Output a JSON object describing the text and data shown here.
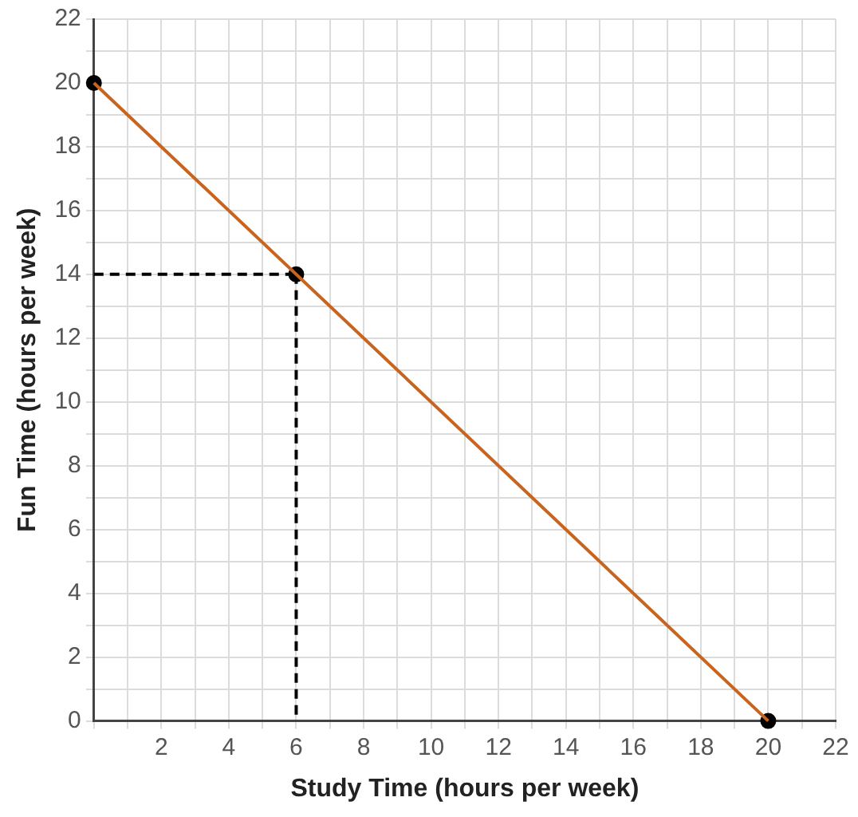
{
  "chart_data": {
    "type": "line",
    "xlabel": "Study Time (hours per week)",
    "ylabel": "Fun Time (hours per week)",
    "xlim": [
      0,
      22
    ],
    "ylim": [
      0,
      22
    ],
    "xticks": [
      {
        "value": 0,
        "label": null
      },
      {
        "value": 1,
        "label": null
      },
      2,
      {
        "value": 3,
        "label": null
      },
      4,
      {
        "value": 5,
        "label": null
      },
      6,
      {
        "value": 7,
        "label": null
      },
      8,
      {
        "value": 9,
        "label": null
      },
      10,
      {
        "value": 11,
        "label": null
      },
      12,
      {
        "value": 13,
        "label": null
      },
      14,
      {
        "value": 15,
        "label": null
      },
      16,
      {
        "value": 17,
        "label": null
      },
      18,
      {
        "value": 19,
        "label": null
      },
      20,
      {
        "value": 21,
        "label": null
      },
      22
    ],
    "yticks": [
      0,
      {
        "value": 1,
        "label": null
      },
      2,
      {
        "value": 3,
        "label": null
      },
      4,
      {
        "value": 5,
        "label": null
      },
      6,
      {
        "value": 7,
        "label": null
      },
      8,
      {
        "value": 9,
        "label": null
      },
      10,
      {
        "value": 11,
        "label": null
      },
      12,
      {
        "value": 13,
        "label": null
      },
      14,
      {
        "value": 15,
        "label": null
      },
      16,
      {
        "value": 17,
        "label": null
      },
      18,
      {
        "value": 19,
        "label": null
      },
      20,
      {
        "value": 21,
        "label": null
      },
      22
    ],
    "grid": true,
    "legend": false,
    "series": [
      {
        "color": "#c8641e",
        "x": [
          0,
          20
        ],
        "values": [
          20,
          0
        ],
        "marker": "none",
        "line_style": "solid"
      },
      {
        "color": "#000000",
        "x": [
          0,
          6
        ],
        "values": [
          14,
          14
        ],
        "marker": "none",
        "line_style": "dashed"
      },
      {
        "color": "#000000",
        "x": [
          6,
          6
        ],
        "values": [
          14,
          0
        ],
        "marker": "none",
        "line_style": "dashed"
      },
      {
        "type": "scatter",
        "color": "#000000",
        "x": [
          0,
          6,
          20
        ],
        "values": [
          20,
          14,
          0
        ],
        "marker": "circle"
      }
    ]
  }
}
